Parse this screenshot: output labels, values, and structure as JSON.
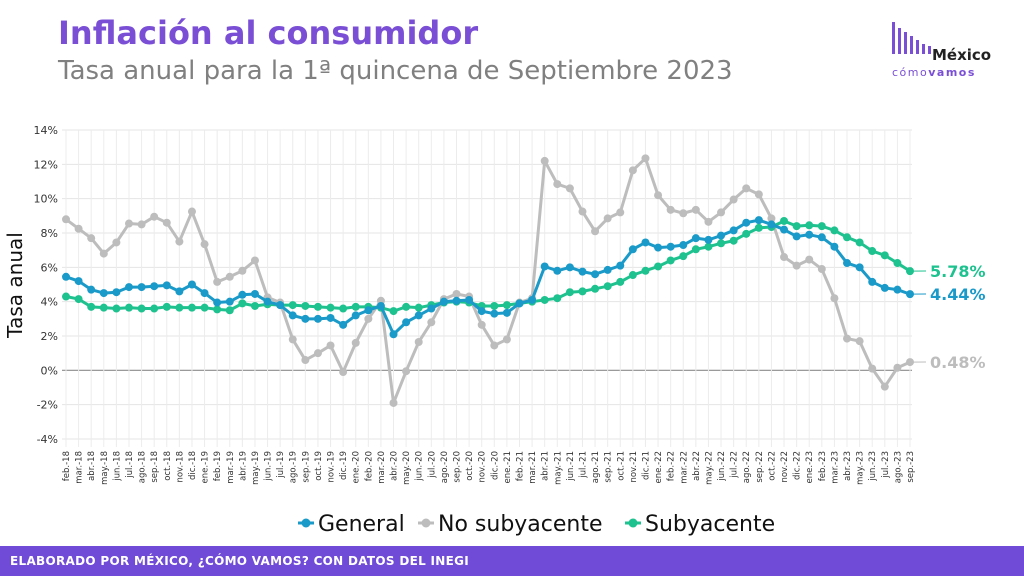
{
  "header": {
    "title": "Inflación al consumidor",
    "subtitle": "Tasa anual para la 1ª quincena de Septiembre 2023"
  },
  "logo": {
    "top": "México",
    "bottom_a": "cómo",
    "bottom_b": "vamos"
  },
  "footer": {
    "text": "ELABORADO POR MÉXICO, ¿CÓMO VAMOS? CON DATOS DEL INEGI"
  },
  "colors": {
    "general": "#1a9ac9",
    "no_subyacente": "#bdbdbd",
    "subyacente": "#1ec28e",
    "accent": "#7a4fd6"
  },
  "chart_data": {
    "type": "line",
    "title": "Inflación al consumidor",
    "subtitle": "Tasa anual para la 1ª quincena de Septiembre 2023",
    "ylabel": "Tasa anual",
    "xlabel": "",
    "ylim": [
      -4,
      14
    ],
    "yticks": [
      -4,
      -2,
      0,
      2,
      4,
      6,
      8,
      10,
      12,
      14
    ],
    "ytick_labels": [
      "-4%",
      "-2%",
      "0%",
      "2%",
      "4%",
      "6%",
      "8%",
      "10%",
      "12%",
      "14%"
    ],
    "grid": true,
    "legend_position": "bottom",
    "categories": [
      "feb.-18",
      "mar.-18",
      "abr.-18",
      "may.-18",
      "jun.-18",
      "jul.-18",
      "ago.-18",
      "sep.-18",
      "oct.-18",
      "nov.-18",
      "dic.-18",
      "ene.-19",
      "feb.-19",
      "mar.-19",
      "abr.-19",
      "may.-19",
      "jun.-19",
      "jul.-19",
      "ago.-19",
      "sep.-19",
      "oct.-19",
      "nov.-19",
      "dic.-19",
      "ene.-20",
      "feb.-20",
      "mar.-20",
      "abr.-20",
      "may.-20",
      "jun.-20",
      "jul.-20",
      "ago.-20",
      "sep.-20",
      "oct.-20",
      "nov.-20",
      "dic.-20",
      "ene.-21",
      "feb.-21",
      "mar.-21",
      "abr.-21",
      "may.-21",
      "jun.-21",
      "jul.-21",
      "ago.-21",
      "sep.-21",
      "oct.-21",
      "nov.-21",
      "dic.-21",
      "ene.-22",
      "feb.-22",
      "mar.-22",
      "abr.-22",
      "may.-22",
      "jun.-22",
      "jul.-22",
      "ago.-22",
      "sep.-22",
      "oct.-22",
      "nov.-22",
      "dic.-22",
      "ene.-23",
      "feb.-23",
      "mar.-23",
      "abr.-23",
      "may.-23",
      "jun.-23",
      "jul.-23",
      "ago.-23",
      "sep.-23"
    ],
    "series": [
      {
        "name": "General",
        "color": "#1a9ac9",
        "end_label": "4.44%",
        "values": [
          5.45,
          5.2,
          4.7,
          4.5,
          4.55,
          4.85,
          4.85,
          4.9,
          4.95,
          4.6,
          5.0,
          4.5,
          3.95,
          4.0,
          4.4,
          4.45,
          4.0,
          3.8,
          3.2,
          3.0,
          3.0,
          3.05,
          2.65,
          3.2,
          3.5,
          3.75,
          2.1,
          2.8,
          3.2,
          3.6,
          4.0,
          4.05,
          4.1,
          3.45,
          3.3,
          3.35,
          3.9,
          4.1,
          6.05,
          5.8,
          6.0,
          5.75,
          5.6,
          5.85,
          6.1,
          7.05,
          7.45,
          7.15,
          7.2,
          7.3,
          7.7,
          7.6,
          7.85,
          8.15,
          8.6,
          8.75,
          8.5,
          8.2,
          7.8,
          7.9,
          7.75,
          7.2,
          6.25,
          6.0,
          5.15,
          4.8,
          4.7,
          4.44
        ]
      },
      {
        "name": "No subyacente",
        "color": "#bdbdbd",
        "end_label": "0.48%",
        "values": [
          8.8,
          8.25,
          7.7,
          6.8,
          7.45,
          8.55,
          8.5,
          8.95,
          8.6,
          7.5,
          9.25,
          7.35,
          5.15,
          5.45,
          5.8,
          6.4,
          4.25,
          3.95,
          1.8,
          0.6,
          1.0,
          1.45,
          -0.1,
          1.6,
          3.0,
          4.05,
          -1.9,
          -0.05,
          1.65,
          2.8,
          4.15,
          4.45,
          4.3,
          2.65,
          1.45,
          1.8,
          3.95,
          4.2,
          12.2,
          10.85,
          10.6,
          9.25,
          8.1,
          8.85,
          9.2,
          11.65,
          12.35,
          10.2,
          9.35,
          9.15,
          9.35,
          8.65,
          9.2,
          9.95,
          10.6,
          10.25,
          8.85,
          6.6,
          6.1,
          6.45,
          5.9,
          4.2,
          1.85,
          1.7,
          0.1,
          -0.95,
          0.15,
          0.48
        ]
      },
      {
        "name": "Subyacente",
        "color": "#1ec28e",
        "end_label": "5.78%",
        "values": [
          4.3,
          4.15,
          3.7,
          3.65,
          3.6,
          3.65,
          3.6,
          3.6,
          3.7,
          3.65,
          3.65,
          3.65,
          3.55,
          3.5,
          3.9,
          3.75,
          3.85,
          3.8,
          3.8,
          3.75,
          3.7,
          3.65,
          3.6,
          3.7,
          3.7,
          3.65,
          3.45,
          3.7,
          3.65,
          3.8,
          3.95,
          4.0,
          3.95,
          3.75,
          3.75,
          3.8,
          3.9,
          4.0,
          4.1,
          4.2,
          4.55,
          4.6,
          4.75,
          4.9,
          5.15,
          5.55,
          5.8,
          6.05,
          6.4,
          6.65,
          7.05,
          7.2,
          7.4,
          7.55,
          7.95,
          8.3,
          8.35,
          8.7,
          8.4,
          8.45,
          8.4,
          8.15,
          7.75,
          7.45,
          6.95,
          6.7,
          6.25,
          5.78
        ]
      }
    ]
  }
}
